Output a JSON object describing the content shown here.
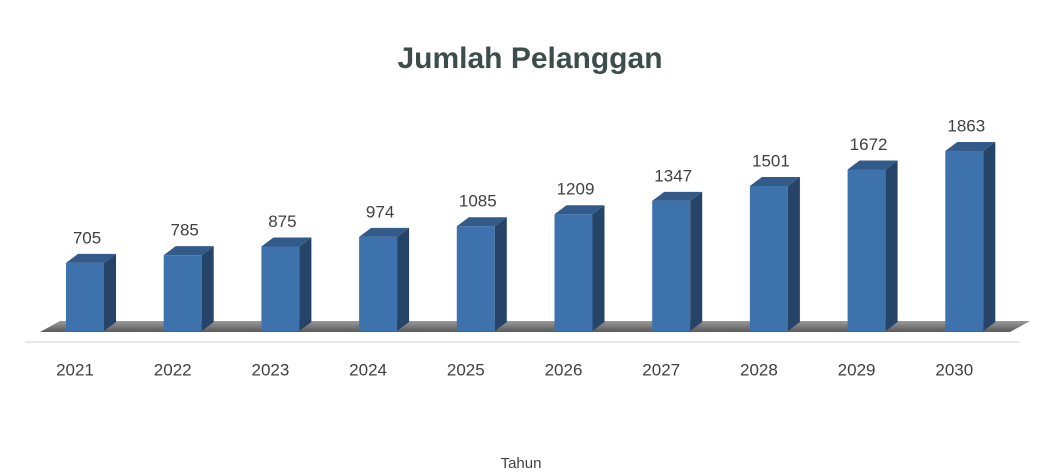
{
  "chart_data": {
    "type": "bar3d",
    "title": "Jumlah Pelanggan",
    "x_label": "Tahun",
    "categories": [
      "2021",
      "2022",
      "2023",
      "2024",
      "2025",
      "2026",
      "2027",
      "2028",
      "2029",
      "2030"
    ],
    "values": [
      705,
      785,
      875,
      974,
      1085,
      1209,
      1347,
      1501,
      1672,
      1863
    ],
    "color": "#3e72ac"
  }
}
